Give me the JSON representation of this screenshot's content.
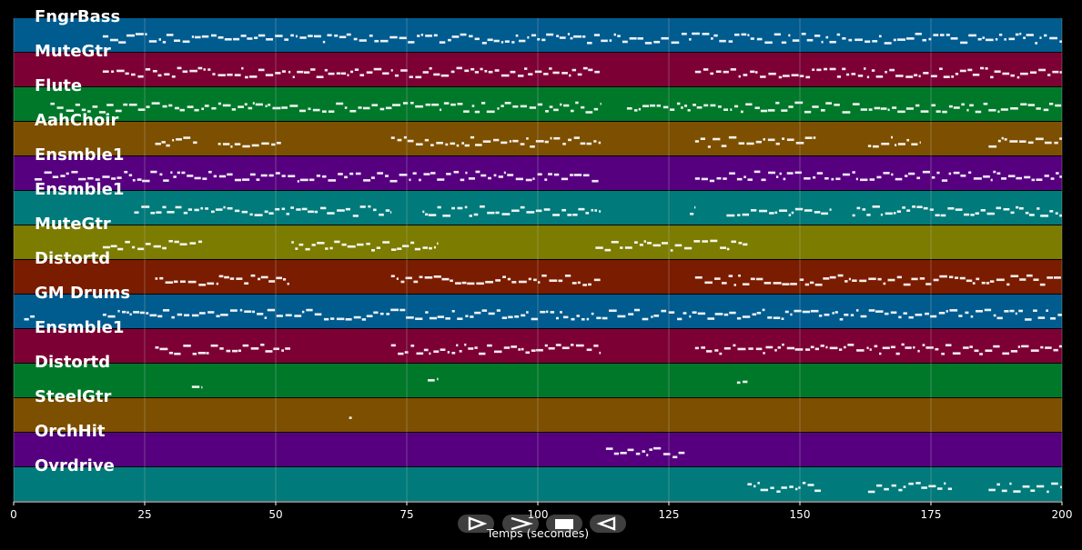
{
  "chart_data": {
    "type": "piano-roll",
    "xlabel": "Temps (secondes)",
    "xlim": [
      0,
      200
    ],
    "xticks": [
      0,
      25,
      50,
      75,
      100,
      125,
      150,
      175,
      200
    ],
    "grid": true,
    "tracks": [
      {
        "name": "FngrBass",
        "color": "#005b8f",
        "notes": [
          [
            17,
            20
          ],
          [
            20,
            200
          ]
        ]
      },
      {
        "name": "MuteGtr",
        "color": "#7c0034",
        "notes": [
          [
            17,
            112
          ],
          [
            130,
            200
          ]
        ]
      },
      {
        "name": "Flute",
        "color": "#00782a",
        "notes": [
          [
            7,
            112
          ],
          [
            117,
            200
          ]
        ]
      },
      {
        "name": "AahChoir",
        "color": "#7d4f00",
        "notes": [
          [
            27,
            35
          ],
          [
            39,
            51
          ],
          [
            72,
            112
          ],
          [
            130,
            153
          ],
          [
            163,
            173
          ],
          [
            186,
            200
          ]
        ]
      },
      {
        "name": "Ensmble1",
        "color": "#560080",
        "notes": [
          [
            4,
            112
          ],
          [
            130,
            200
          ]
        ]
      },
      {
        "name": "Ensmble1",
        "color": "#007a7a",
        "notes": [
          [
            23,
            72
          ],
          [
            78,
            112
          ],
          [
            129,
            130
          ],
          [
            136,
            156
          ],
          [
            160,
            200
          ]
        ]
      },
      {
        "name": "MuteGtr",
        "color": "#7b7c00",
        "notes": [
          [
            17,
            36
          ],
          [
            53,
            81
          ],
          [
            111,
            140
          ]
        ]
      },
      {
        "name": "Distortd",
        "color": "#7a1c00",
        "notes": [
          [
            27,
            53
          ],
          [
            72,
            112
          ],
          [
            130,
            200
          ]
        ]
      },
      {
        "name": "GM Drums",
        "color": "#005b8f",
        "notes": [
          [
            2,
            4
          ],
          [
            17,
            200
          ]
        ]
      },
      {
        "name": "Ensmble1",
        "color": "#7c0034",
        "notes": [
          [
            27,
            53
          ],
          [
            72,
            112
          ],
          [
            130,
            200
          ]
        ]
      },
      {
        "name": "Distortd",
        "color": "#00782a",
        "notes": [
          [
            34,
            36
          ],
          [
            79,
            81
          ],
          [
            138,
            140
          ]
        ]
      },
      {
        "name": "SteelGtr",
        "color": "#7d4f00",
        "notes": [
          [
            64,
            64.5
          ]
        ]
      },
      {
        "name": "OrchHit",
        "color": "#560080",
        "notes": [
          [
            113,
            128
          ]
        ]
      },
      {
        "name": "Ovrdrive",
        "color": "#007a7a",
        "notes": [
          [
            140,
            154
          ],
          [
            163,
            179
          ],
          [
            186,
            200
          ]
        ]
      }
    ]
  },
  "controls": [
    {
      "name": "play",
      "icon": "play-triangle-icon"
    },
    {
      "name": "forward",
      "icon": "chevron-forward-icon"
    },
    {
      "name": "stop",
      "icon": "stop-square-icon"
    },
    {
      "name": "back",
      "icon": "back-triangle-icon"
    }
  ]
}
